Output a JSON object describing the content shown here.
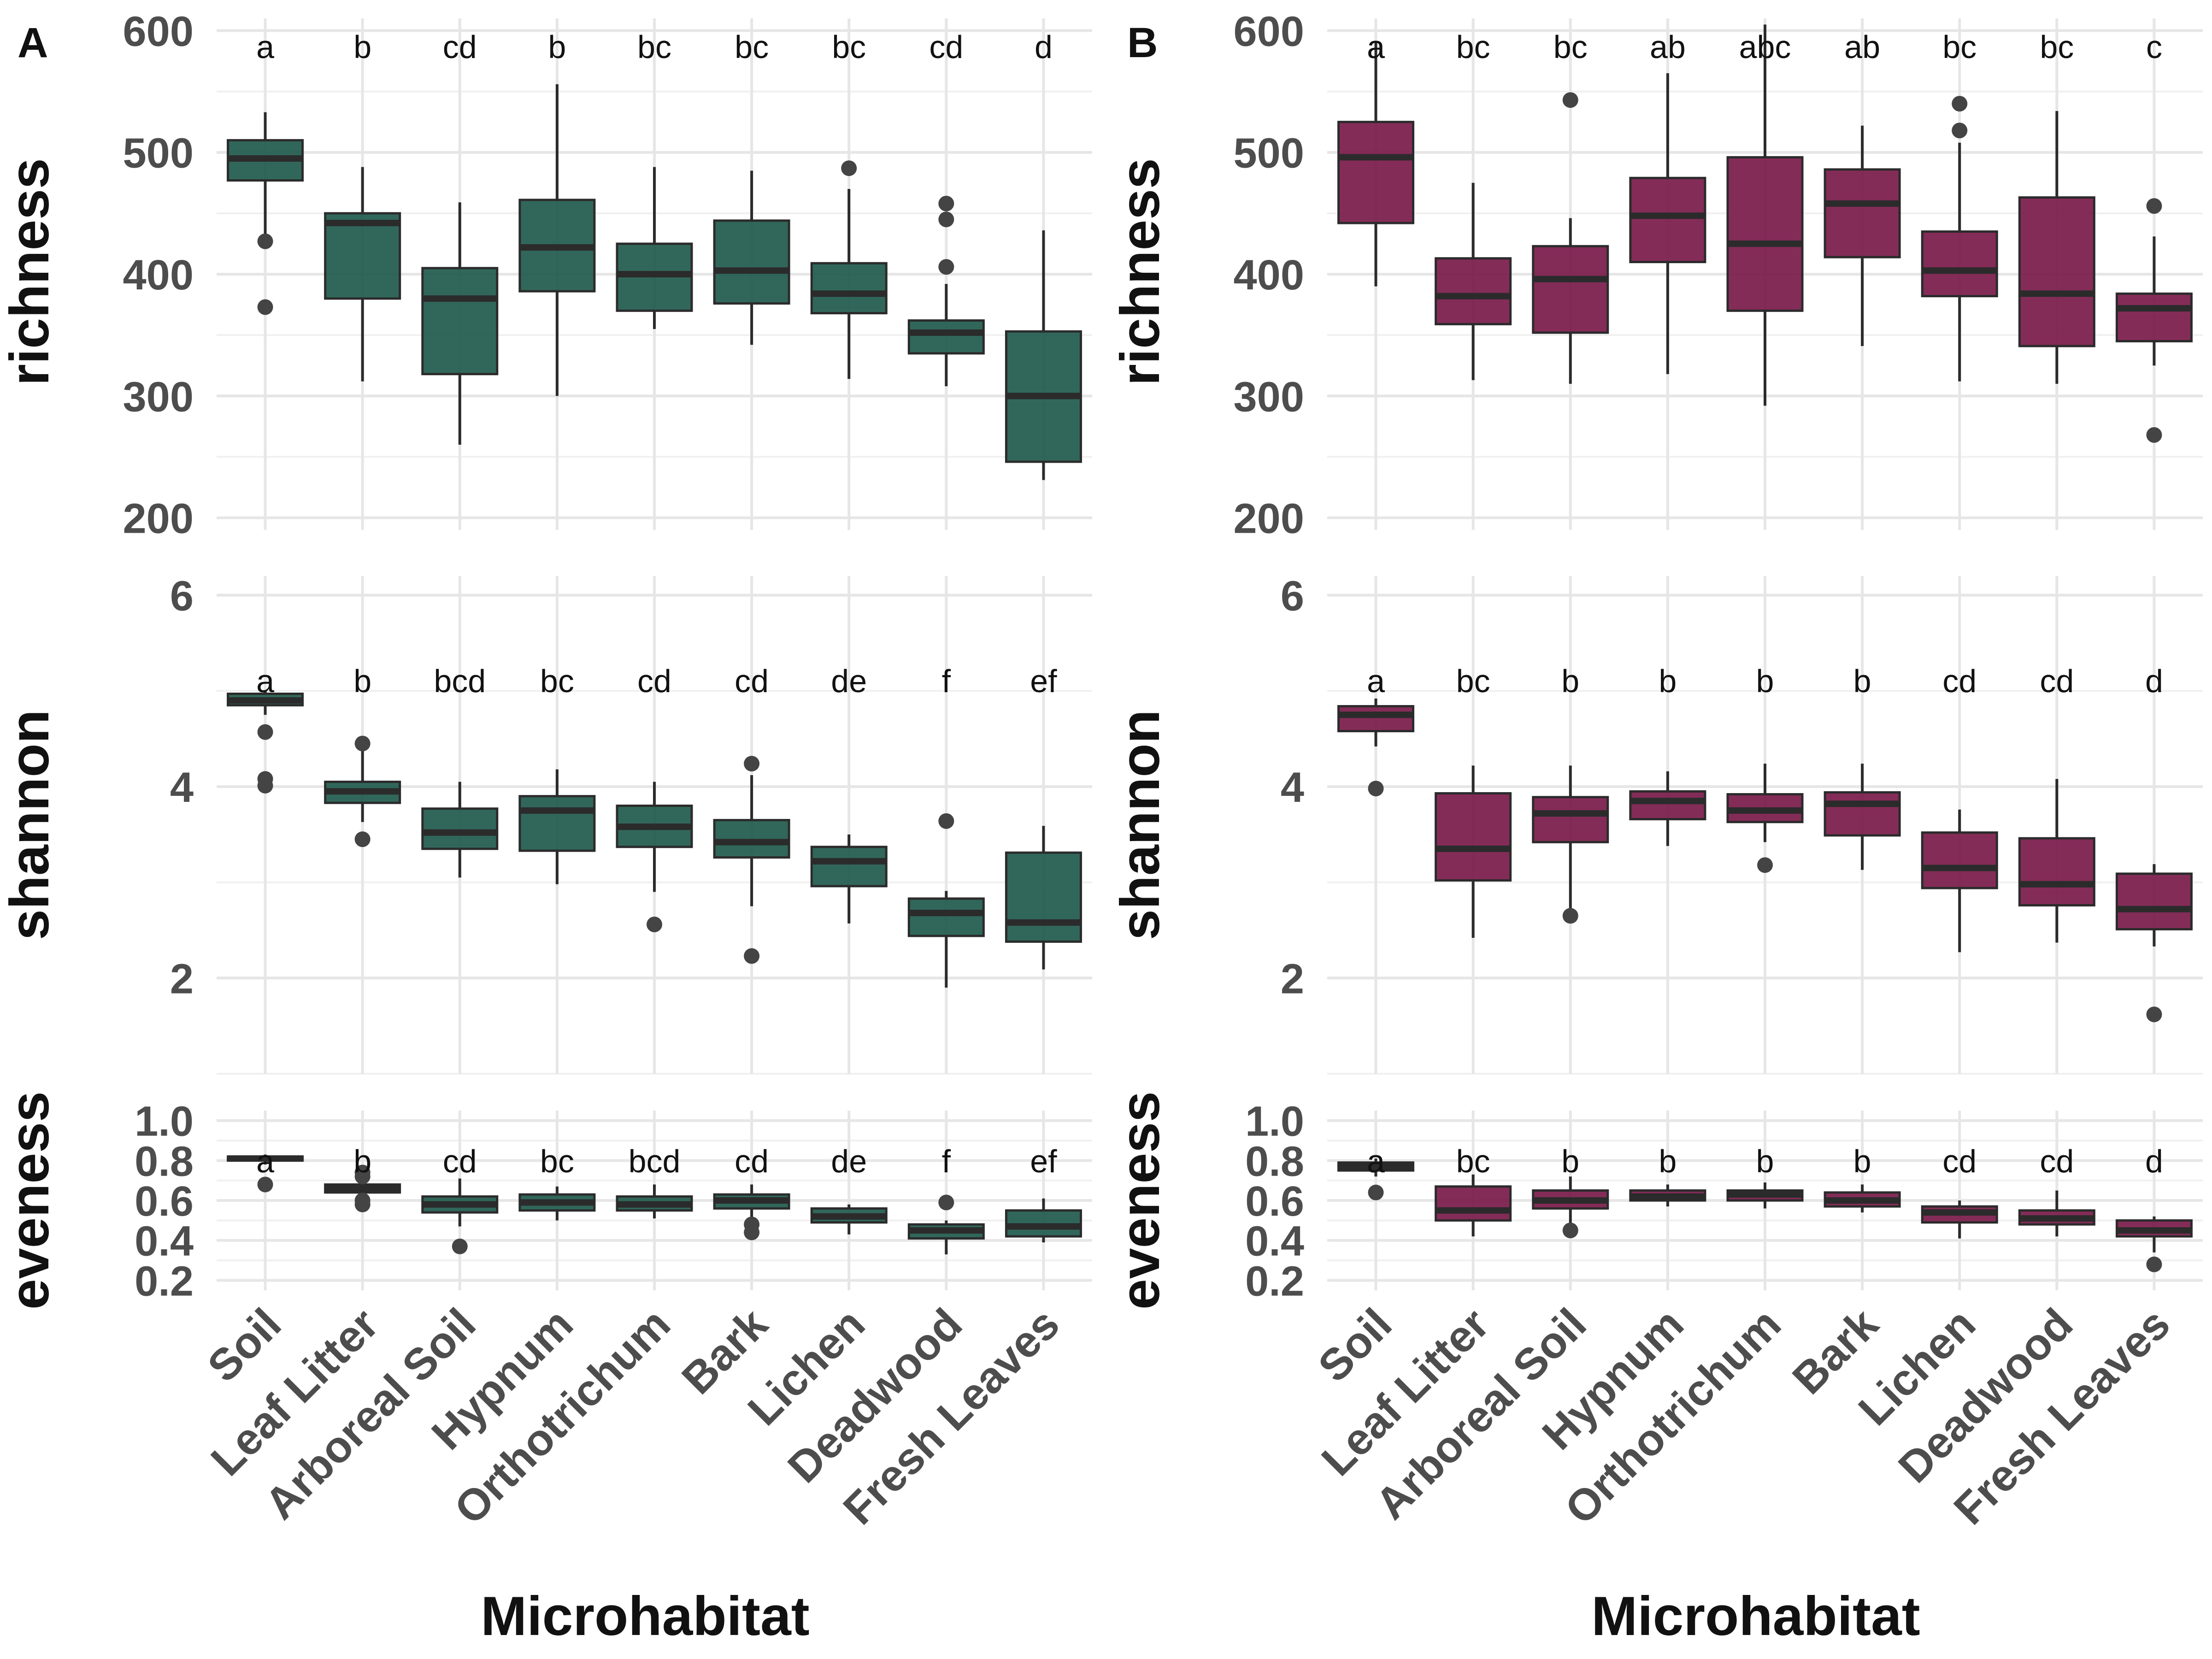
{
  "xlabel": "Microhabitat",
  "categories": [
    "Soil",
    "Leaf Litter",
    "Arboreal Soil",
    "Hypnum",
    "Orthotrichum",
    "Bark",
    "Lichen",
    "Deadwood",
    "Fresh Leaves"
  ],
  "colors": {
    "A": "#1f5a4c",
    "B": "#7a1a4a",
    "median": "#2b2b2b",
    "outlier": "#444444"
  },
  "chart_data": [
    {
      "type": "box",
      "panel": "A",
      "metric": "richness",
      "ylabel": "richness",
      "ylim": [
        190,
        610
      ],
      "yticks": [
        200,
        300,
        400,
        500,
        600
      ],
      "letters": [
        "a",
        "b",
        "cd",
        "b",
        "bc",
        "bc",
        "bc",
        "cd",
        "d"
      ],
      "boxes": [
        {
          "whislo": 430,
          "q1": 477,
          "med": 495,
          "q3": 510,
          "whishi": 533,
          "fliers": [
            427,
            373
          ]
        },
        {
          "whislo": 312,
          "q1": 380,
          "med": 442,
          "q3": 450,
          "whishi": 488,
          "fliers": []
        },
        {
          "whislo": 260,
          "q1": 318,
          "med": 380,
          "q3": 405,
          "whishi": 459,
          "fliers": []
        },
        {
          "whislo": 300,
          "q1": 386,
          "med": 422,
          "q3": 461,
          "whishi": 556,
          "fliers": []
        },
        {
          "whislo": 355,
          "q1": 370,
          "med": 400,
          "q3": 425,
          "whishi": 488,
          "fliers": []
        },
        {
          "whislo": 342,
          "q1": 376,
          "med": 403,
          "q3": 444,
          "whishi": 485,
          "fliers": []
        },
        {
          "whislo": 314,
          "q1": 368,
          "med": 384,
          "q3": 409,
          "whishi": 470,
          "fliers": [
            487
          ]
        },
        {
          "whislo": 308,
          "q1": 335,
          "med": 352,
          "q3": 362,
          "whishi": 392,
          "fliers": [
            458,
            445,
            406
          ]
        },
        {
          "whislo": 231,
          "q1": 246,
          "med": 300,
          "q3": 353,
          "whishi": 436,
          "fliers": []
        }
      ]
    },
    {
      "type": "box",
      "panel": "A",
      "metric": "shannon",
      "ylabel": "shannon",
      "ylim": [
        1.0,
        6.2
      ],
      "yticks": [
        2,
        4,
        6
      ],
      "letters": [
        "a",
        "b",
        "bcd",
        "bc",
        "cd",
        "cd",
        "de",
        "f",
        "ef"
      ],
      "boxes": [
        {
          "whislo": 4.75,
          "q1": 4.85,
          "med": 4.9,
          "q3": 4.97,
          "whishi": 5.0,
          "fliers": [
            4.57,
            4.08,
            4.01
          ]
        },
        {
          "whislo": 3.63,
          "q1": 3.83,
          "med": 3.95,
          "q3": 4.05,
          "whishi": 4.38,
          "fliers": [
            4.45,
            3.45
          ]
        },
        {
          "whislo": 3.05,
          "q1": 3.35,
          "med": 3.52,
          "q3": 3.77,
          "whishi": 4.05,
          "fliers": []
        },
        {
          "whislo": 2.98,
          "q1": 3.33,
          "med": 3.75,
          "q3": 3.9,
          "whishi": 4.18,
          "fliers": []
        },
        {
          "whislo": 2.9,
          "q1": 3.37,
          "med": 3.58,
          "q3": 3.8,
          "whishi": 4.05,
          "fliers": [
            2.56
          ]
        },
        {
          "whislo": 2.75,
          "q1": 3.26,
          "med": 3.42,
          "q3": 3.65,
          "whishi": 4.12,
          "fliers": [
            4.24,
            2.23
          ]
        },
        {
          "whislo": 2.57,
          "q1": 2.96,
          "med": 3.22,
          "q3": 3.37,
          "whishi": 3.5,
          "fliers": []
        },
        {
          "whislo": 1.9,
          "q1": 2.44,
          "med": 2.68,
          "q3": 2.83,
          "whishi": 2.91,
          "fliers": [
            3.64
          ]
        },
        {
          "whislo": 2.09,
          "q1": 2.38,
          "med": 2.58,
          "q3": 3.31,
          "whishi": 3.59,
          "fliers": []
        }
      ]
    },
    {
      "type": "box",
      "panel": "A",
      "metric": "eveness",
      "ylabel": "eveness",
      "ylim": [
        0.15,
        1.05
      ],
      "yticks": [
        0.2,
        0.4,
        0.6,
        0.8,
        1.0
      ],
      "yticklabels": [
        "0.2",
        "0.4",
        "0.6",
        "0.8",
        "1.0"
      ],
      "letters": [
        "a",
        "b",
        "cd",
        "bc",
        "bcd",
        "cd",
        "de",
        "f",
        "ef"
      ],
      "boxes": [
        {
          "whislo": 0.78,
          "q1": 0.8,
          "med": 0.81,
          "q3": 0.82,
          "whishi": 0.83,
          "fliers": [
            0.68
          ]
        },
        {
          "whislo": 0.62,
          "q1": 0.64,
          "med": 0.66,
          "q3": 0.68,
          "whishi": 0.7,
          "fliers": [
            0.74,
            0.72,
            0.6,
            0.58
          ]
        },
        {
          "whislo": 0.47,
          "q1": 0.54,
          "med": 0.58,
          "q3": 0.62,
          "whishi": 0.71,
          "fliers": [
            0.37
          ]
        },
        {
          "whislo": 0.5,
          "q1": 0.55,
          "med": 0.59,
          "q3": 0.63,
          "whishi": 0.67,
          "fliers": []
        },
        {
          "whislo": 0.51,
          "q1": 0.55,
          "med": 0.58,
          "q3": 0.62,
          "whishi": 0.68,
          "fliers": []
        },
        {
          "whislo": 0.51,
          "q1": 0.56,
          "med": 0.6,
          "q3": 0.63,
          "whishi": 0.68,
          "fliers": [
            0.48,
            0.44
          ]
        },
        {
          "whislo": 0.43,
          "q1": 0.49,
          "med": 0.52,
          "q3": 0.56,
          "whishi": 0.58,
          "fliers": []
        },
        {
          "whislo": 0.33,
          "q1": 0.41,
          "med": 0.45,
          "q3": 0.48,
          "whishi": 0.5,
          "fliers": [
            0.59
          ]
        },
        {
          "whislo": 0.39,
          "q1": 0.42,
          "med": 0.47,
          "q3": 0.55,
          "whishi": 0.61,
          "fliers": []
        }
      ]
    },
    {
      "type": "box",
      "panel": "B",
      "metric": "richness",
      "ylabel": "richness",
      "ylim": [
        190,
        610
      ],
      "yticks": [
        200,
        300,
        400,
        500,
        600
      ],
      "letters": [
        "a",
        "bc",
        "bc",
        "ab",
        "abc",
        "ab",
        "bc",
        "bc",
        "c"
      ],
      "boxes": [
        {
          "whislo": 390,
          "q1": 442,
          "med": 496,
          "q3": 525,
          "whishi": 590,
          "fliers": []
        },
        {
          "whislo": 313,
          "q1": 359,
          "med": 382,
          "q3": 413,
          "whishi": 475,
          "fliers": []
        },
        {
          "whislo": 310,
          "q1": 352,
          "med": 396,
          "q3": 423,
          "whishi": 446,
          "fliers": [
            543
          ]
        },
        {
          "whislo": 318,
          "q1": 410,
          "med": 448,
          "q3": 479,
          "whishi": 565,
          "fliers": []
        },
        {
          "whislo": 292,
          "q1": 370,
          "med": 425,
          "q3": 496,
          "whishi": 605,
          "fliers": []
        },
        {
          "whislo": 341,
          "q1": 414,
          "med": 458,
          "q3": 486,
          "whishi": 522,
          "fliers": []
        },
        {
          "whislo": 312,
          "q1": 382,
          "med": 403,
          "q3": 435,
          "whishi": 508,
          "fliers": [
            540,
            518
          ]
        },
        {
          "whislo": 310,
          "q1": 341,
          "med": 384,
          "q3": 463,
          "whishi": 534,
          "fliers": []
        },
        {
          "whislo": 325,
          "q1": 345,
          "med": 372,
          "q3": 384,
          "whishi": 431,
          "fliers": [
            456,
            268
          ]
        }
      ]
    },
    {
      "type": "box",
      "panel": "B",
      "metric": "shannon",
      "ylabel": "shannon",
      "ylim": [
        1.0,
        6.2
      ],
      "yticks": [
        2,
        4,
        6
      ],
      "letters": [
        "a",
        "bc",
        "b",
        "b",
        "b",
        "b",
        "cd",
        "cd",
        "d"
      ],
      "boxes": [
        {
          "whislo": 4.42,
          "q1": 4.58,
          "med": 4.75,
          "q3": 4.84,
          "whishi": 4.92,
          "fliers": [
            3.98
          ]
        },
        {
          "whislo": 2.42,
          "q1": 3.02,
          "med": 3.35,
          "q3": 3.93,
          "whishi": 4.22,
          "fliers": []
        },
        {
          "whislo": 2.73,
          "q1": 3.42,
          "med": 3.72,
          "q3": 3.89,
          "whishi": 4.22,
          "fliers": [
            2.65
          ]
        },
        {
          "whislo": 3.38,
          "q1": 3.66,
          "med": 3.85,
          "q3": 3.95,
          "whishi": 4.16,
          "fliers": []
        },
        {
          "whislo": 3.42,
          "q1": 3.63,
          "med": 3.75,
          "q3": 3.92,
          "whishi": 4.24,
          "fliers": [
            3.18
          ]
        },
        {
          "whislo": 3.13,
          "q1": 3.49,
          "med": 3.82,
          "q3": 3.94,
          "whishi": 4.24,
          "fliers": []
        },
        {
          "whislo": 2.27,
          "q1": 2.94,
          "med": 3.15,
          "q3": 3.52,
          "whishi": 3.76,
          "fliers": []
        },
        {
          "whislo": 2.37,
          "q1": 2.76,
          "med": 2.98,
          "q3": 3.46,
          "whishi": 4.08,
          "fliers": []
        },
        {
          "whislo": 2.33,
          "q1": 2.51,
          "med": 2.72,
          "q3": 3.09,
          "whishi": 3.19,
          "fliers": [
            1.62
          ]
        }
      ]
    },
    {
      "type": "box",
      "panel": "B",
      "metric": "eveness",
      "ylabel": "eveness",
      "ylim": [
        0.15,
        1.05
      ],
      "yticks": [
        0.2,
        0.4,
        0.6,
        0.8,
        1.0
      ],
      "yticklabels": [
        "0.2",
        "0.4",
        "0.6",
        "0.8",
        "1.0"
      ],
      "letters": [
        "a",
        "bc",
        "b",
        "b",
        "b",
        "b",
        "cd",
        "cd",
        "d"
      ],
      "boxes": [
        {
          "whislo": 0.72,
          "q1": 0.75,
          "med": 0.77,
          "q3": 0.79,
          "whishi": 0.81,
          "fliers": [
            0.64
          ]
        },
        {
          "whislo": 0.42,
          "q1": 0.5,
          "med": 0.55,
          "q3": 0.67,
          "whishi": 0.73,
          "fliers": []
        },
        {
          "whislo": 0.46,
          "q1": 0.56,
          "med": 0.6,
          "q3": 0.65,
          "whishi": 0.72,
          "fliers": [
            0.45
          ]
        },
        {
          "whislo": 0.57,
          "q1": 0.6,
          "med": 0.62,
          "q3": 0.65,
          "whishi": 0.68,
          "fliers": []
        },
        {
          "whislo": 0.56,
          "q1": 0.6,
          "med": 0.63,
          "q3": 0.65,
          "whishi": 0.69,
          "fliers": []
        },
        {
          "whislo": 0.54,
          "q1": 0.57,
          "med": 0.6,
          "q3": 0.64,
          "whishi": 0.68,
          "fliers": []
        },
        {
          "whislo": 0.41,
          "q1": 0.49,
          "med": 0.54,
          "q3": 0.57,
          "whishi": 0.6,
          "fliers": []
        },
        {
          "whislo": 0.42,
          "q1": 0.48,
          "med": 0.51,
          "q3": 0.55,
          "whishi": 0.65,
          "fliers": []
        },
        {
          "whislo": 0.34,
          "q1": 0.42,
          "med": 0.45,
          "q3": 0.5,
          "whishi": 0.52,
          "fliers": [
            0.28
          ]
        }
      ]
    }
  ],
  "panels": [
    {
      "id": "A",
      "label": "A"
    },
    {
      "id": "B",
      "label": "B"
    }
  ]
}
